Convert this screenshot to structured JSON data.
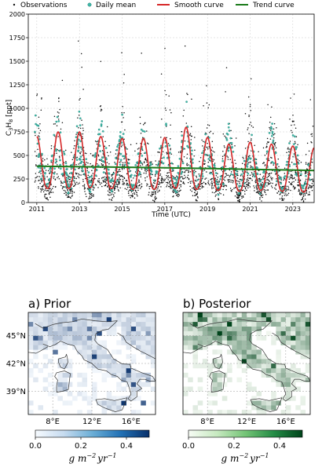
{
  "chart_data": [
    {
      "type": "scatter",
      "ylabel": "C3H8 [ppt]",
      "ylabel_main": "C",
      "ylabel_sub1": "3",
      "ylabel_mid": "H",
      "ylabel_sub2": "8",
      "ylabel_unit": " [ppt]",
      "xlabel": "Time (UTC)",
      "xlim": [
        2010.6,
        2024.0
      ],
      "ylim": [
        0,
        2000
      ],
      "yticks": [
        "0",
        "250",
        "500",
        "750",
        "1000",
        "1250",
        "1500",
        "1750",
        "2000"
      ],
      "xticks": [
        "2011",
        "2013",
        "2015",
        "2017",
        "2019",
        "2021",
        "2023"
      ],
      "legend_placement": "top",
      "series": [
        {
          "name": "Observations",
          "color": "#111111",
          "kind": "points"
        },
        {
          "name": "Daily mean",
          "color": "#3fb8a8",
          "kind": "points"
        },
        {
          "name": "Smooth curve",
          "color": "#d62728",
          "kind": "line",
          "x": [
            2011.0,
            2011.25,
            2011.5,
            2011.75,
            2012.0,
            2012.25,
            2012.5,
            2012.75,
            2013.0,
            2013.25,
            2013.5,
            2013.75,
            2014.0,
            2014.25,
            2014.5,
            2014.75,
            2015.0,
            2015.25,
            2015.5,
            2015.75,
            2016.0,
            2016.25,
            2016.5,
            2016.75,
            2017.0,
            2017.25,
            2017.5,
            2017.75,
            2018.0,
            2018.25,
            2018.5,
            2018.75,
            2019.0,
            2019.25,
            2019.5,
            2019.75,
            2020.0,
            2020.25,
            2020.5,
            2020.75,
            2021.0,
            2021.25,
            2021.5,
            2021.75,
            2022.0,
            2022.25,
            2022.5,
            2022.75,
            2023.0,
            2023.25,
            2023.5,
            2023.75,
            2024.0
          ],
          "y": [
            700,
            400,
            150,
            420,
            750,
            420,
            150,
            410,
            750,
            400,
            160,
            410,
            700,
            390,
            150,
            400,
            680,
            390,
            140,
            400,
            680,
            380,
            140,
            390,
            690,
            400,
            150,
            420,
            800,
            420,
            140,
            400,
            690,
            380,
            130,
            360,
            620,
            360,
            120,
            360,
            640,
            370,
            130,
            380,
            620,
            360,
            120,
            350,
            600,
            350,
            110,
            340,
            580
          ]
        },
        {
          "name": "Trend curve",
          "color": "#1a7a1a",
          "kind": "line",
          "x": [
            2011.0,
            2013.0,
            2015.0,
            2017.0,
            2019.0,
            2021.0,
            2023.0,
            2024.0
          ],
          "y": [
            385,
            380,
            375,
            368,
            362,
            352,
            345,
            340
          ]
        }
      ]
    },
    {
      "type": "heatmap",
      "title": "a) Prior",
      "colormap": "Blues",
      "xticks": [
        "8°E",
        "12°E",
        "16°E"
      ],
      "yticks": [
        "45°N",
        "42°N",
        "39°N"
      ],
      "colorbar_ticks": [
        "0.0",
        "0.2",
        "0.4"
      ],
      "colorbar_range": [
        0.0,
        0.5
      ],
      "colorbar_label": "g m⁻² yr⁻¹",
      "unit_g": "g m",
      "unit_exp1": "−2",
      "unit_mid": "yr",
      "unit_exp2": "−1"
    },
    {
      "type": "heatmap",
      "title": "b) Posterior",
      "colormap": "Greens",
      "xticks": [
        "8°E",
        "12°E",
        "16°E"
      ],
      "yticks": [],
      "colorbar_ticks": [
        "0.0",
        "0.2",
        "0.4"
      ],
      "colorbar_range": [
        0.0,
        0.5
      ],
      "colorbar_label": "g m⁻² yr⁻¹",
      "unit_g": "g m",
      "unit_exp1": "−2",
      "unit_mid": "yr",
      "unit_exp2": "−1"
    }
  ]
}
